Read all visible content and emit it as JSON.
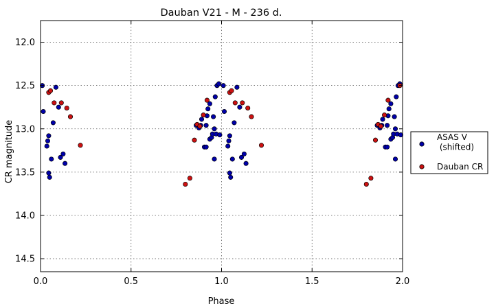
{
  "chart_data": {
    "type": "scatter",
    "title": "Dauban V21 - M - 236 d.",
    "xlabel": "Phase",
    "ylabel": "CR magnitude",
    "xlim": [
      0.0,
      2.0
    ],
    "ylim": [
      14.65,
      11.75
    ],
    "y_inverted": true,
    "x_ticks": [
      "0.0",
      "0.5",
      "1.0",
      "1.5",
      "2.0"
    ],
    "y_ticks": [
      "12.0",
      "12.5",
      "13.0",
      "13.5",
      "14.0",
      "14.5"
    ],
    "grid": true,
    "legend_position": "outside-right",
    "series": [
      {
        "name": "ASAS V\n (shifted)",
        "color": "#0000aa",
        "points": [
          [
            0.01,
            12.5
          ],
          [
            0.015,
            12.8
          ],
          [
            0.035,
            13.2
          ],
          [
            0.04,
            13.14
          ],
          [
            0.045,
            13.08
          ],
          [
            0.045,
            13.51
          ],
          [
            0.05,
            13.56
          ],
          [
            0.06,
            13.35
          ],
          [
            0.07,
            12.93
          ],
          [
            0.085,
            12.52
          ],
          [
            0.1,
            12.75
          ],
          [
            0.11,
            13.33
          ],
          [
            0.125,
            13.29
          ],
          [
            0.135,
            13.4
          ],
          [
            0.86,
            12.96
          ],
          [
            0.875,
            12.99
          ],
          [
            0.885,
            12.96
          ],
          [
            0.89,
            12.89
          ],
          [
            0.905,
            13.21
          ],
          [
            0.915,
            12.96
          ],
          [
            0.915,
            13.21
          ],
          [
            0.92,
            12.85
          ],
          [
            0.925,
            12.77
          ],
          [
            0.935,
            12.71
          ],
          [
            0.935,
            13.12
          ],
          [
            0.945,
            13.1
          ],
          [
            0.95,
            13.06
          ],
          [
            0.955,
            12.86
          ],
          [
            0.96,
            13.0
          ],
          [
            0.96,
            13.35
          ],
          [
            0.965,
            12.63
          ],
          [
            0.97,
            13.06
          ],
          [
            0.975,
            12.5
          ],
          [
            0.985,
            12.48
          ],
          [
            0.99,
            13.07
          ],
          [
            1.01,
            12.5
          ],
          [
            1.015,
            12.8
          ],
          [
            1.035,
            13.2
          ],
          [
            1.04,
            13.14
          ],
          [
            1.045,
            13.08
          ],
          [
            1.045,
            13.51
          ],
          [
            1.05,
            13.56
          ],
          [
            1.06,
            13.35
          ],
          [
            1.07,
            12.93
          ],
          [
            1.085,
            12.52
          ],
          [
            1.1,
            12.75
          ],
          [
            1.11,
            13.33
          ],
          [
            1.125,
            13.29
          ],
          [
            1.135,
            13.4
          ],
          [
            1.86,
            12.96
          ],
          [
            1.875,
            12.99
          ],
          [
            1.885,
            12.96
          ],
          [
            1.89,
            12.89
          ],
          [
            1.905,
            13.21
          ],
          [
            1.915,
            12.96
          ],
          [
            1.915,
            13.21
          ],
          [
            1.92,
            12.85
          ],
          [
            1.925,
            12.77
          ],
          [
            1.935,
            12.71
          ],
          [
            1.935,
            13.12
          ],
          [
            1.945,
            13.1
          ],
          [
            1.95,
            13.06
          ],
          [
            1.955,
            12.86
          ],
          [
            1.96,
            13.0
          ],
          [
            1.96,
            13.35
          ],
          [
            1.965,
            12.63
          ],
          [
            1.97,
            13.06
          ],
          [
            1.975,
            12.5
          ],
          [
            1.985,
            12.48
          ],
          [
            1.99,
            13.07
          ]
        ]
      },
      {
        "name": "Dauban CR",
        "color": "#cc1111",
        "points": [
          [
            0.045,
            12.58
          ],
          [
            0.055,
            12.56
          ],
          [
            0.075,
            12.7
          ],
          [
            0.115,
            12.7
          ],
          [
            0.145,
            12.76
          ],
          [
            0.165,
            12.86
          ],
          [
            0.22,
            13.19
          ],
          [
            0.8,
            13.64
          ],
          [
            0.825,
            13.57
          ],
          [
            0.85,
            13.13
          ],
          [
            0.865,
            12.95
          ],
          [
            0.88,
            12.97
          ],
          [
            0.9,
            12.84
          ],
          [
            0.92,
            12.67
          ],
          [
            1.045,
            12.58
          ],
          [
            1.055,
            12.56
          ],
          [
            1.075,
            12.7
          ],
          [
            1.115,
            12.7
          ],
          [
            1.145,
            12.76
          ],
          [
            1.165,
            12.86
          ],
          [
            1.22,
            13.19
          ],
          [
            1.8,
            13.64
          ],
          [
            1.825,
            13.57
          ],
          [
            1.85,
            13.13
          ],
          [
            1.865,
            12.95
          ],
          [
            1.88,
            12.97
          ],
          [
            1.9,
            12.84
          ],
          [
            1.92,
            12.67
          ],
          [
            1.985,
            12.5
          ]
        ]
      }
    ]
  }
}
